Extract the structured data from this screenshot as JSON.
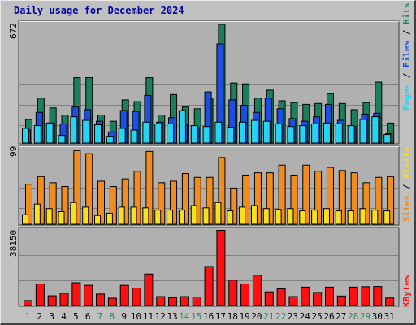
{
  "title": "Daily usage for December 2024",
  "colors": {
    "background": "#c0c0c0",
    "plot": "#b0b0b0",
    "grid": "#808080",
    "hits": "#1b7f5b",
    "files": "#1a4fe0",
    "pages": "#22d5f5",
    "visits": "#f08c20",
    "sites": "#f8e020",
    "kbytes": "#ff1010",
    "day_weekday": "#000000",
    "day_weekend": "#2a8a4a"
  },
  "right_labels": {
    "top": [
      {
        "text": "Pages",
        "color": "#22d5f5"
      },
      {
        "text": " / ",
        "color": "#000000"
      },
      {
        "text": "Files",
        "color": "#1a4fe0"
      },
      {
        "text": " / ",
        "color": "#000000"
      },
      {
        "text": "Hits",
        "color": "#1b7f5b"
      }
    ],
    "middle": [
      {
        "text": "Sites",
        "color": "#f08c20"
      },
      {
        "text": " / ",
        "color": "#000000"
      },
      {
        "text": "Visits",
        "color": "#f8e020"
      }
    ],
    "bottom": [
      {
        "text": "KBytes",
        "color": "#ff1010"
      }
    ]
  },
  "chart_data": [
    {
      "type": "bar",
      "panel": "hits_files_pages",
      "ymax_label": "672",
      "ylim": [
        0,
        672
      ],
      "categories": [
        "1",
        "2",
        "3",
        "4",
        "5",
        "6",
        "7",
        "8",
        "9",
        "10",
        "11",
        "12",
        "13",
        "14",
        "15",
        "16",
        "17",
        "18",
        "19",
        "20",
        "21",
        "22",
        "23",
        "24",
        "25",
        "26",
        "27",
        "28",
        "29",
        "30",
        "31"
      ],
      "series": [
        {
          "name": "Hits",
          "values": [
            135,
            255,
            200,
            160,
            370,
            370,
            160,
            125,
            245,
            235,
            370,
            160,
            275,
            205,
            195,
            250,
            670,
            340,
            335,
            255,
            300,
            240,
            230,
            220,
            225,
            280,
            225,
            190,
            230,
            345,
            115
          ]
        },
        {
          "name": "Files",
          "values": [
            75,
            175,
            115,
            110,
            205,
            190,
            125,
            65,
            185,
            180,
            270,
            120,
            145,
            105,
            90,
            290,
            560,
            245,
            215,
            175,
            255,
            195,
            140,
            125,
            150,
            220,
            130,
            95,
            165,
            170,
            55
          ]
        },
        {
          "name": "Pages",
          "values": [
            85,
            100,
            115,
            45,
            150,
            130,
            105,
            40,
            85,
            75,
            120,
            110,
            110,
            185,
            100,
            95,
            120,
            90,
            120,
            130,
            125,
            110,
            95,
            100,
            110,
            115,
            110,
            100,
            135,
            150,
            50
          ]
        }
      ]
    },
    {
      "type": "bar",
      "panel": "visits_sites",
      "ymax_label": "99",
      "ylim": [
        0,
        99
      ],
      "categories": [
        "1",
        "2",
        "3",
        "4",
        "5",
        "6",
        "7",
        "8",
        "9",
        "10",
        "11",
        "12",
        "13",
        "14",
        "15",
        "16",
        "17",
        "18",
        "19",
        "20",
        "21",
        "22",
        "23",
        "24",
        "25",
        "26",
        "27",
        "28",
        "29",
        "30",
        "31"
      ],
      "series": [
        {
          "name": "Visits",
          "values": [
            13,
            27,
            21,
            17,
            29,
            23,
            12,
            15,
            23,
            23,
            22,
            19,
            19,
            19,
            25,
            22,
            29,
            18,
            23,
            25,
            21,
            20,
            21,
            18,
            19,
            21,
            18,
            18,
            21,
            19,
            18
          ]
        },
        {
          "name": "Sites",
          "values": [
            53,
            63,
            55,
            50,
            97,
            93,
            57,
            50,
            60,
            70,
            96,
            55,
            57,
            67,
            62,
            62,
            88,
            48,
            65,
            68,
            68,
            78,
            65,
            78,
            70,
            75,
            71,
            68,
            55,
            62,
            63
          ]
        }
      ]
    },
    {
      "type": "bar",
      "panel": "kbytes",
      "ymax_label": "38150",
      "ylim": [
        0,
        38150
      ],
      "categories": [
        "1",
        "2",
        "3",
        "4",
        "5",
        "6",
        "7",
        "8",
        "9",
        "10",
        "11",
        "12",
        "13",
        "14",
        "15",
        "16",
        "17",
        "18",
        "19",
        "20",
        "21",
        "22",
        "23",
        "24",
        "25",
        "26",
        "27",
        "28",
        "29",
        "30",
        "31"
      ],
      "series": [
        {
          "name": "KBytes",
          "values": [
            2700,
            11100,
            5100,
            6400,
            11700,
            10400,
            6000,
            3900,
            10400,
            9000,
            16100,
            4700,
            4200,
            4700,
            4500,
            19900,
            38150,
            13000,
            11100,
            15500,
            7100,
            8600,
            4700,
            9500,
            6800,
            9500,
            5000,
            9500,
            9700,
            9800,
            4000
          ]
        }
      ]
    }
  ],
  "weekend_days": [
    1,
    7,
    8,
    14,
    15,
    21,
    22,
    28,
    29
  ]
}
